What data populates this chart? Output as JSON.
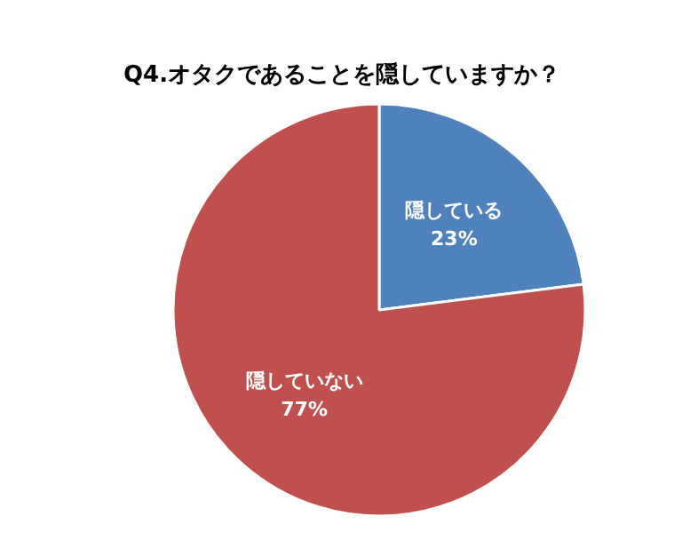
{
  "chart_data": {
    "type": "pie",
    "title": "Q4.オタクであることを隠していますか？",
    "categories": [
      "隠している",
      "隠していない"
    ],
    "values": [
      23,
      77
    ],
    "colors": [
      "#4f81bd",
      "#c0504d"
    ],
    "value_labels": [
      "23%",
      "77%"
    ]
  }
}
